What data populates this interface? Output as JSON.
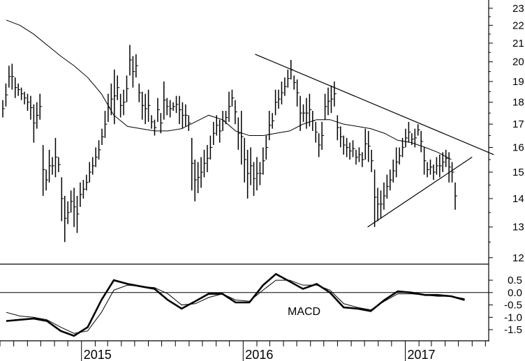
{
  "chart_data": [
    {
      "type": "ohlc",
      "panel": "price",
      "scale": "log",
      "ylim": [
        11.8,
        23.5
      ],
      "y_ticks": [
        12,
        13,
        14,
        15,
        16,
        17,
        18,
        19,
        20,
        21,
        22,
        23
      ],
      "x_start": "2014-07",
      "x_end": "2017-08",
      "x_labels": [
        "2015",
        "2016",
        "2017"
      ],
      "x_label_dates": [
        "2015-01-01",
        "2016-01-01",
        "2017-01-01"
      ],
      "bars_weekly_hl": [
        [
          17.3,
          18.1
        ],
        [
          17.8,
          18.9
        ],
        [
          18.7,
          19.8
        ],
        [
          18.6,
          19.9
        ],
        [
          18.2,
          19.2
        ],
        [
          18.3,
          18.9
        ],
        [
          18.1,
          18.7
        ],
        [
          17.9,
          18.5
        ],
        [
          17.6,
          18.4
        ],
        [
          17.2,
          18.3
        ],
        [
          16.2,
          17.9
        ],
        [
          16.8,
          18.0
        ],
        [
          17.2,
          18.4
        ],
        [
          14.1,
          16.1
        ],
        [
          14.3,
          15.1
        ],
        [
          14.6,
          15.9
        ],
        [
          14.9,
          15.6
        ],
        [
          14.8,
          16.4
        ],
        [
          15.0,
          15.6
        ],
        [
          13.2,
          14.8
        ],
        [
          12.5,
          14.1
        ],
        [
          13.1,
          13.9
        ],
        [
          13.5,
          14.3
        ],
        [
          13.0,
          14.4
        ],
        [
          12.8,
          14.1
        ],
        [
          13.7,
          14.6
        ],
        [
          14.0,
          14.7
        ],
        [
          14.3,
          14.9
        ],
        [
          14.6,
          15.4
        ],
        [
          14.9,
          15.6
        ],
        [
          15.2,
          16.0
        ],
        [
          15.5,
          16.3
        ],
        [
          16.1,
          16.8
        ],
        [
          16.4,
          17.6
        ],
        [
          17.1,
          18.4
        ],
        [
          17.4,
          18.9
        ],
        [
          17.0,
          19.6
        ],
        [
          18.1,
          19.3
        ],
        [
          17.3,
          18.4
        ],
        [
          17.4,
          18.6
        ],
        [
          18.0,
          19.3
        ],
        [
          19.3,
          20.9
        ],
        [
          18.7,
          20.3
        ],
        [
          19.2,
          20.4
        ],
        [
          18.0,
          18.9
        ],
        [
          17.2,
          18.5
        ],
        [
          17.0,
          18.4
        ],
        [
          17.1,
          18.6
        ],
        [
          16.8,
          17.4
        ],
        [
          16.5,
          17.2
        ],
        [
          17.1,
          18.2
        ],
        [
          16.6,
          17.5
        ],
        [
          17.2,
          19.0
        ],
        [
          17.4,
          18.2
        ],
        [
          17.3,
          18.1
        ],
        [
          17.6,
          18.0
        ],
        [
          17.5,
          18.3
        ],
        [
          17.0,
          18.3
        ],
        [
          16.8,
          18.0
        ],
        [
          16.9,
          17.9
        ],
        [
          16.7,
          17.4
        ],
        [
          14.3,
          16.4
        ],
        [
          13.9,
          15.5
        ],
        [
          14.2,
          15.4
        ],
        [
          14.4,
          15.6
        ],
        [
          14.8,
          15.9
        ],
        [
          15.0,
          16.1
        ],
        [
          15.5,
          16.5
        ],
        [
          16.1,
          17.1
        ],
        [
          16.5,
          17.4
        ],
        [
          16.2,
          17.2
        ],
        [
          16.7,
          17.6
        ],
        [
          17.0,
          17.6
        ],
        [
          17.1,
          18.5
        ],
        [
          17.8,
          18.6
        ],
        [
          17.0,
          18.1
        ],
        [
          15.9,
          17.3
        ],
        [
          15.3,
          17.6
        ],
        [
          14.6,
          16.4
        ],
        [
          14.0,
          15.9
        ],
        [
          14.5,
          16.0
        ],
        [
          14.1,
          15.4
        ],
        [
          14.3,
          15.6
        ],
        [
          14.5,
          15.4
        ],
        [
          14.9,
          16.0
        ],
        [
          15.5,
          16.5
        ],
        [
          16.3,
          17.6
        ],
        [
          16.8,
          17.5
        ],
        [
          17.4,
          18.6
        ],
        [
          17.7,
          18.6
        ],
        [
          17.9,
          19.0
        ],
        [
          18.3,
          19.2
        ],
        [
          18.7,
          19.6
        ],
        [
          19.1,
          20.1
        ],
        [
          18.6,
          19.3
        ],
        [
          17.8,
          19.1
        ],
        [
          16.7,
          18.3
        ],
        [
          17.1,
          17.9
        ],
        [
          16.8,
          18.2
        ],
        [
          16.9,
          18.4
        ],
        [
          16.7,
          17.6
        ],
        [
          16.2,
          17.1
        ],
        [
          15.6,
          16.6
        ],
        [
          15.9,
          17.1
        ],
        [
          17.2,
          18.4
        ],
        [
          17.4,
          18.7
        ],
        [
          17.5,
          18.8
        ],
        [
          17.8,
          19.0
        ],
        [
          16.3,
          17.4
        ],
        [
          16.0,
          16.9
        ],
        [
          15.7,
          16.5
        ],
        [
          15.6,
          16.4
        ],
        [
          15.5,
          16.2
        ],
        [
          15.6,
          16.3
        ],
        [
          15.3,
          15.9
        ],
        [
          15.4,
          16.0
        ],
        [
          15.2,
          15.8
        ],
        [
          15.5,
          16.8
        ],
        [
          15.4,
          16.7
        ],
        [
          15.0,
          15.9
        ],
        [
          13.0,
          15.1
        ],
        [
          13.2,
          14.4
        ],
        [
          13.3,
          14.3
        ],
        [
          13.6,
          14.6
        ],
        [
          14.0,
          14.9
        ],
        [
          14.3,
          15.1
        ],
        [
          14.6,
          15.5
        ],
        [
          14.8,
          16.0
        ],
        [
          15.3,
          16.0
        ],
        [
          15.6,
          16.4
        ],
        [
          16.0,
          16.8
        ],
        [
          16.2,
          17.1
        ],
        [
          16.1,
          16.6
        ],
        [
          16.0,
          16.8
        ],
        [
          16.5,
          17.0
        ],
        [
          15.8,
          16.7
        ],
        [
          14.9,
          16.0
        ],
        [
          14.8,
          15.4
        ],
        [
          14.9,
          15.5
        ],
        [
          14.7,
          15.3
        ],
        [
          14.9,
          15.6
        ],
        [
          14.8,
          15.7
        ],
        [
          15.0,
          15.8
        ],
        [
          15.2,
          15.9
        ],
        [
          14.6,
          15.8
        ],
        [
          14.6,
          15.4
        ],
        [
          13.6,
          14.6
        ]
      ],
      "moving_average": {
        "dates": [
          "2014-07",
          "2014-08",
          "2014-09",
          "2014-10",
          "2014-11",
          "2014-12",
          "2015-01",
          "2015-02",
          "2015-03",
          "2015-04",
          "2015-05",
          "2015-06",
          "2015-07",
          "2015-08",
          "2015-09",
          "2015-10",
          "2015-11",
          "2015-12",
          "2016-01",
          "2016-02",
          "2016-03",
          "2016-04",
          "2016-05",
          "2016-06",
          "2016-07",
          "2016-08",
          "2016-09",
          "2016-10",
          "2016-11",
          "2016-12",
          "2017-01",
          "2017-02",
          "2017-03",
          "2017-04"
        ],
        "values": [
          22.3,
          22.0,
          21.5,
          20.9,
          20.3,
          19.8,
          19.2,
          18.4,
          17.4,
          16.9,
          16.8,
          16.7,
          16.7,
          16.8,
          17.1,
          17.4,
          17.2,
          16.7,
          16.5,
          16.5,
          16.6,
          16.7,
          17.0,
          17.2,
          17.2,
          17.0,
          16.9,
          16.8,
          16.6,
          16.3,
          16.2,
          16.0,
          15.8,
          15.5
        ]
      },
      "trendlines": [
        {
          "name": "upper",
          "from": [
            "2016-01-28",
            20.4
          ],
          "to": [
            "2017-07-20",
            15.7
          ]
        },
        {
          "name": "lower",
          "from": [
            "2016-10-08",
            13.0
          ],
          "to": [
            "2017-06-01",
            15.6
          ]
        }
      ]
    },
    {
      "type": "line",
      "panel": "macd",
      "ylim": [
        -1.95,
        1.15
      ],
      "y_ticks": [
        0.5,
        0.0,
        -0.5,
        -1.0,
        -1.5
      ],
      "y_tick_labels": [
        "0.5",
        "0.0",
        "-0.5",
        "-1.0",
        "-1.5"
      ],
      "label": "MACD",
      "zero_line": true,
      "series": [
        {
          "role": "macd",
          "dates": [
            "2014-07",
            "2014-08",
            "2014-09",
            "2014-10",
            "2014-11",
            "2014-12",
            "2015-01",
            "2015-02",
            "2015-03",
            "2015-04",
            "2015-05",
            "2015-06",
            "2015-07",
            "2015-08",
            "2015-09",
            "2015-10",
            "2015-11",
            "2015-12",
            "2016-01",
            "2016-02",
            "2016-03",
            "2016-04",
            "2016-05",
            "2016-06",
            "2016-07",
            "2016-08",
            "2016-09",
            "2016-10",
            "2016-11",
            "2016-12",
            "2017-01",
            "2017-02",
            "2017-03",
            "2017-04",
            "2017-05"
          ],
          "values": [
            -1.15,
            -1.1,
            -1.05,
            -1.15,
            -1.55,
            -1.75,
            -1.4,
            -0.3,
            0.5,
            0.35,
            0.25,
            0.15,
            -0.3,
            -0.65,
            -0.35,
            -0.05,
            -0.05,
            -0.4,
            -0.4,
            0.3,
            0.75,
            0.45,
            0.15,
            0.35,
            0.0,
            -0.6,
            -0.65,
            -0.75,
            -0.3,
            0.05,
            0.0,
            -0.1,
            -0.1,
            -0.15,
            -0.3
          ]
        },
        {
          "role": "signal",
          "dates": [
            "2014-07",
            "2014-08",
            "2014-09",
            "2014-10",
            "2014-11",
            "2014-12",
            "2015-01",
            "2015-02",
            "2015-03",
            "2015-04",
            "2015-05",
            "2015-06",
            "2015-07",
            "2015-08",
            "2015-09",
            "2015-10",
            "2015-11",
            "2015-12",
            "2016-01",
            "2016-02",
            "2016-03",
            "2016-04",
            "2016-05",
            "2016-06",
            "2016-07",
            "2016-08",
            "2016-09",
            "2016-10",
            "2016-11",
            "2016-12",
            "2017-01",
            "2017-02",
            "2017-03",
            "2017-04",
            "2017-05"
          ],
          "values": [
            -0.8,
            -0.95,
            -1.0,
            -1.1,
            -1.4,
            -1.65,
            -1.55,
            -0.8,
            0.1,
            0.3,
            0.25,
            0.2,
            -0.05,
            -0.5,
            -0.45,
            -0.2,
            -0.05,
            -0.3,
            -0.35,
            0.1,
            0.5,
            0.5,
            0.3,
            0.3,
            0.1,
            -0.45,
            -0.6,
            -0.7,
            -0.35,
            -0.05,
            -0.05,
            -0.1,
            -0.15,
            -0.15,
            -0.25
          ]
        }
      ]
    }
  ]
}
